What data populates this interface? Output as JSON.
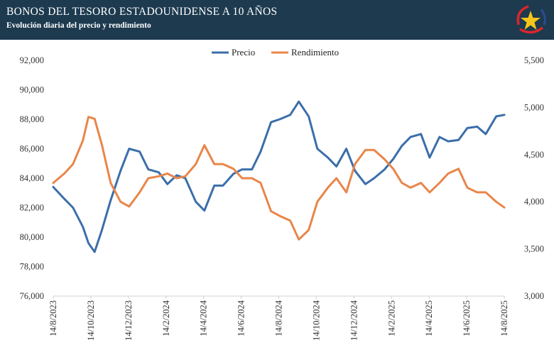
{
  "header": {
    "title": "BONOS DEL TESORO ESTADOUNIDENSE A 10 AÑOS",
    "subtitle": "Evolución diaria del precio y rendimiento",
    "logo_icon": "star-emblem"
  },
  "colors": {
    "header_bg": "#1d3a4f",
    "precio": "#3b6eaa",
    "rendimiento": "#e8864a",
    "logo_star": "#f5c518",
    "logo_red": "#d9262c"
  },
  "chart_data": {
    "type": "line",
    "title": "BONOS DEL TESORO ESTADOUNIDENSE A 10 AÑOS",
    "subtitle": "Evolución diaria del precio y rendimiento",
    "legend_position": "top-center",
    "grid": false,
    "x_tick_labels": [
      "14/8/2023",
      "14/10/2023",
      "14/12/2023",
      "14/2/2024",
      "14/4/2024",
      "14/6/2024",
      "14/8/2024",
      "14/10/2024",
      "14/12/2024",
      "14/2/2025",
      "14/4/2025",
      "14/6/2025",
      "14/8/2025"
    ],
    "y_left": {
      "ylim": [
        76000,
        92000
      ],
      "tick_labels": [
        "76,000",
        "78,000",
        "80,000",
        "82,000",
        "84,000",
        "86,000",
        "88,000",
        "90,000",
        "92,000"
      ]
    },
    "y_right": {
      "ylim": [
        3000,
        5500
      ],
      "tick_labels": [
        "3,000",
        "3,500",
        "4,000",
        "4,500",
        "5,000",
        "5,500"
      ]
    },
    "x": [
      "2023-08-14",
      "2023-09-01",
      "2023-09-15",
      "2023-10-01",
      "2023-10-10",
      "2023-10-20",
      "2023-11-01",
      "2023-11-15",
      "2023-12-01",
      "2023-12-15",
      "2024-01-01",
      "2024-01-15",
      "2024-02-01",
      "2024-02-15",
      "2024-03-01",
      "2024-03-15",
      "2024-04-01",
      "2024-04-15",
      "2024-05-01",
      "2024-05-15",
      "2024-06-01",
      "2024-06-15",
      "2024-07-01",
      "2024-07-15",
      "2024-08-01",
      "2024-08-15",
      "2024-09-01",
      "2024-09-15",
      "2024-10-01",
      "2024-10-15",
      "2024-11-01",
      "2024-11-15",
      "2024-12-01",
      "2024-12-15",
      "2025-01-01",
      "2025-01-15",
      "2025-02-01",
      "2025-02-15",
      "2025-03-01",
      "2025-03-15",
      "2025-04-01",
      "2025-04-15",
      "2025-05-01",
      "2025-05-15",
      "2025-06-01",
      "2025-06-15",
      "2025-07-01",
      "2025-07-15",
      "2025-08-01",
      "2025-08-14"
    ],
    "series": [
      {
        "name": "Precio",
        "axis": "left",
        "values": [
          83400,
          82600,
          82000,
          80700,
          79600,
          79000,
          80500,
          82500,
          84500,
          86000,
          85800,
          84600,
          84400,
          83600,
          84200,
          84000,
          82400,
          81800,
          83500,
          83500,
          84300,
          84600,
          84600,
          85800,
          87800,
          88000,
          88300,
          89200,
          88200,
          86000,
          85400,
          84800,
          86000,
          84500,
          83600,
          84000,
          84600,
          85300,
          86200,
          86800,
          87000,
          85400,
          86800,
          86500,
          86600,
          87400,
          87500,
          87000,
          88200,
          88300
        ]
      },
      {
        "name": "Rendimiento",
        "axis": "right",
        "values": [
          4200,
          4300,
          4400,
          4650,
          4900,
          4880,
          4600,
          4200,
          4000,
          3950,
          4100,
          4250,
          4270,
          4300,
          4250,
          4270,
          4400,
          4600,
          4400,
          4400,
          4350,
          4250,
          4250,
          4200,
          3900,
          3850,
          3800,
          3600,
          3700,
          4000,
          4150,
          4250,
          4100,
          4400,
          4550,
          4550,
          4450,
          4350,
          4200,
          4150,
          4200,
          4100,
          4200,
          4300,
          4350,
          4150,
          4100,
          4100,
          4000,
          3940
        ]
      }
    ]
  }
}
